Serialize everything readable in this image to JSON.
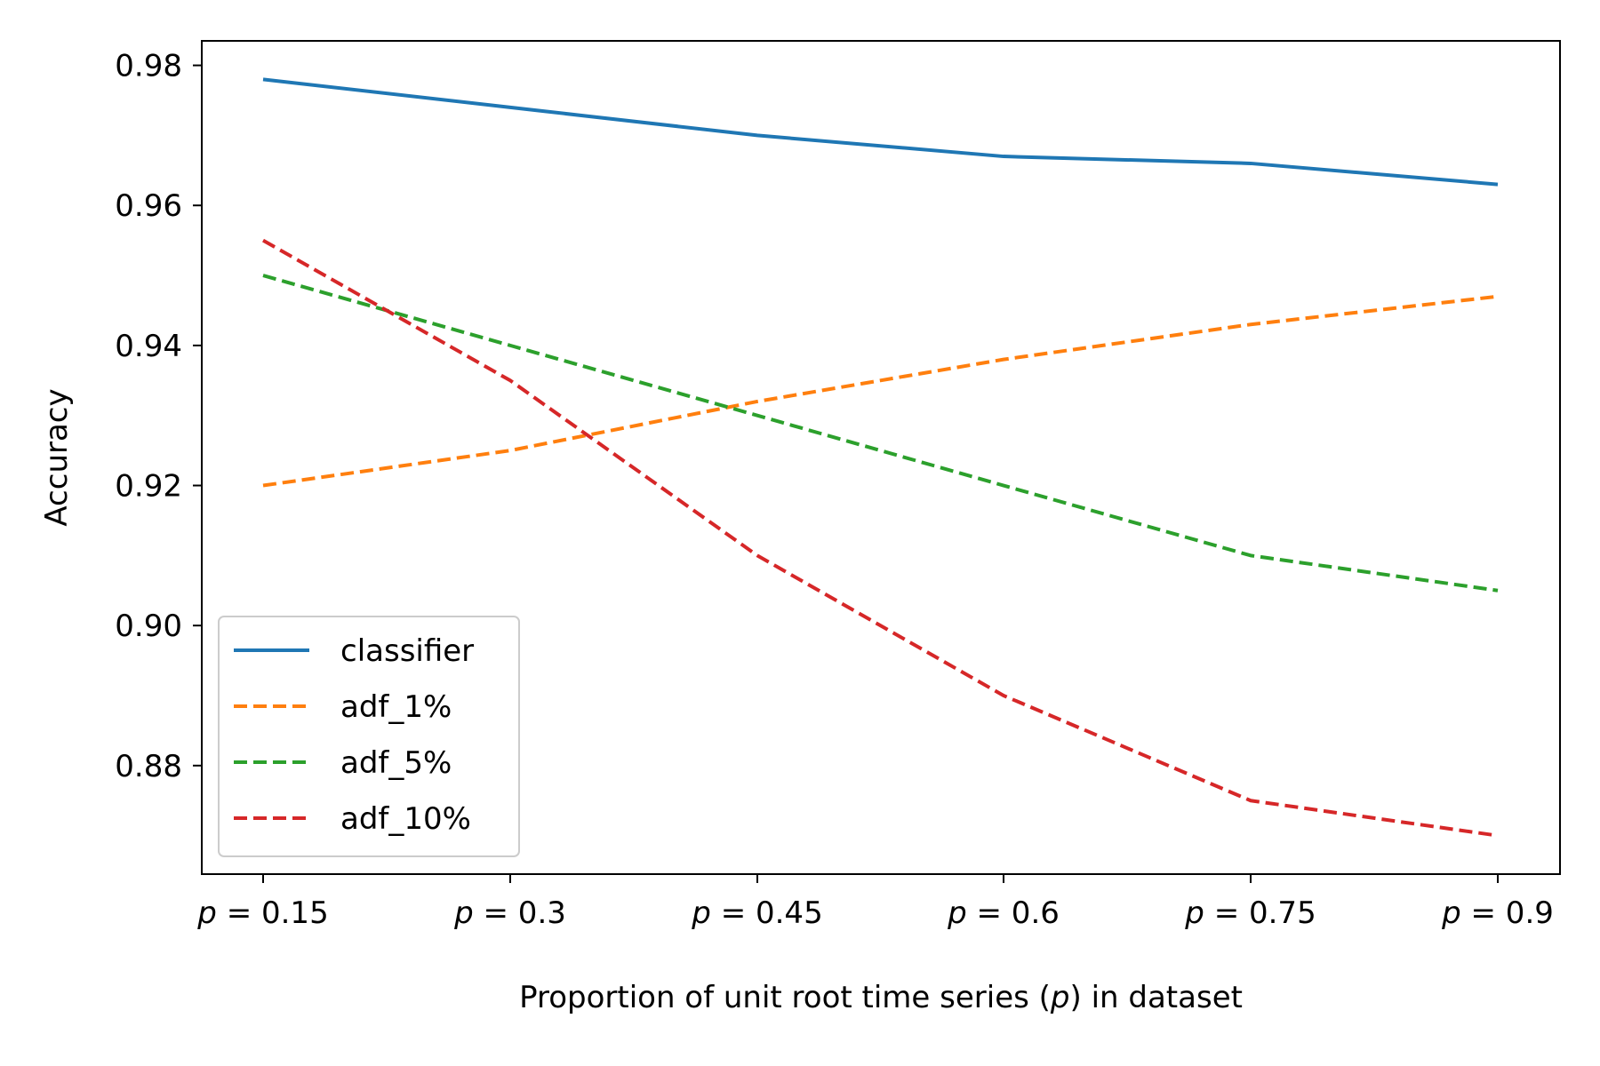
{
  "chart_data": {
    "type": "line",
    "categories": [
      "0.15",
      "0.3",
      "0.45",
      "0.6",
      "0.75",
      "0.9"
    ],
    "xtick_prefix": "p",
    "xtick_operator": " = ",
    "series": [
      {
        "name": "classifier",
        "values": [
          0.978,
          0.974,
          0.97,
          0.967,
          0.966,
          0.963
        ],
        "color": "#1f77b4",
        "style": "solid"
      },
      {
        "name": "adf_1%",
        "values": [
          0.92,
          0.925,
          0.932,
          0.938,
          0.943,
          0.947
        ],
        "color": "#ff7f0e",
        "style": "dashed"
      },
      {
        "name": "adf_5%",
        "values": [
          0.95,
          0.94,
          0.93,
          0.92,
          0.91,
          0.905
        ],
        "color": "#2ca02c",
        "style": "dashed"
      },
      {
        "name": "adf_10%",
        "values": [
          0.955,
          0.935,
          0.91,
          0.89,
          0.875,
          0.87
        ],
        "color": "#d62728",
        "style": "dashed"
      }
    ],
    "yticks": [
      "0.88",
      "0.90",
      "0.92",
      "0.94",
      "0.96",
      "0.98"
    ],
    "ylim": [
      0.8645,
      0.9835
    ],
    "ylabel": "Accuracy",
    "xlabel": {
      "before": "Proportion of unit root time series (",
      "var": "p",
      "after": ") in dataset"
    },
    "legend_position": "lower-left",
    "grid": false
  }
}
